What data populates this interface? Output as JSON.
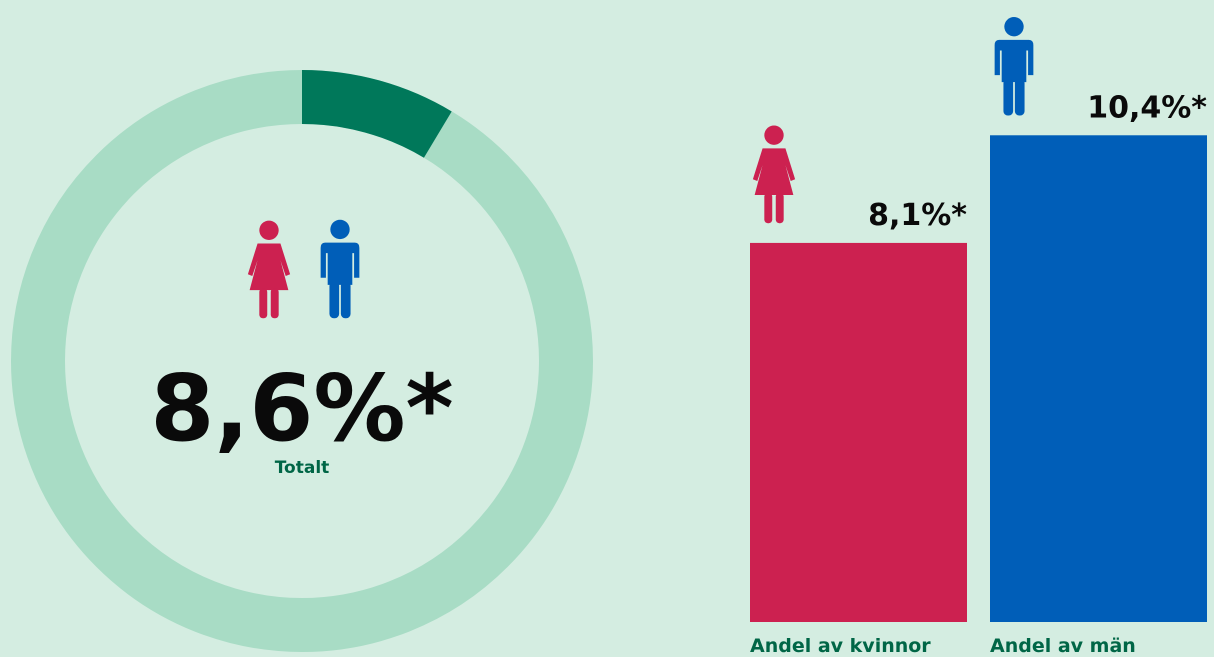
{
  "chart_data": [
    {
      "type": "donut",
      "categories": [
        "Totalt"
      ],
      "values": [
        8.6
      ],
      "value_labels": [
        "8,6%*"
      ],
      "color": "#00785a",
      "track_color": "#a8dcc5"
    },
    {
      "type": "bar",
      "categories": [
        "Andel av kvinnor",
        "Andel av män"
      ],
      "values": [
        8.1,
        10.4
      ],
      "value_labels": [
        "8,1%*",
        "10,4%*"
      ],
      "colors": [
        "#cc2150",
        "#005eb8"
      ]
    }
  ]
}
